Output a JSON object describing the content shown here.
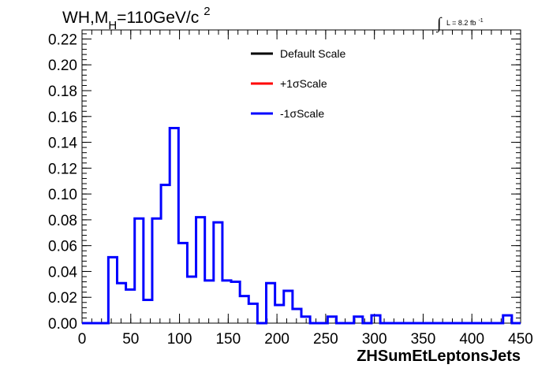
{
  "chart_data": {
    "type": "line",
    "title": {
      "main": "WH,M",
      "subscript": "H",
      "rest": "=110GeV/c",
      "superscript": "2"
    },
    "luminosity": {
      "symbol": "∫",
      "text": "L = 8.2 fb",
      "superscript": "-1"
    },
    "xlabel": "ZHSumEtLeptonsJets",
    "ylabel": "",
    "xlim": [
      0,
      450
    ],
    "ylim": [
      0,
      0.227
    ],
    "x_ticks": [
      "0",
      "50",
      "100",
      "150",
      "200",
      "250",
      "300",
      "350",
      "400",
      "450"
    ],
    "y_ticks": [
      "0.00",
      "0.02",
      "0.04",
      "0.06",
      "0.08",
      "0.10",
      "0.12",
      "0.14",
      "0.16",
      "0.18",
      "0.20",
      "0.22"
    ],
    "legend": {
      "placement": "top-center",
      "entries": [
        {
          "label": "Default Scale",
          "color": "#000000"
        },
        {
          "label": "+1σScale",
          "color": "#ff0000"
        },
        {
          "label": "-1σScale",
          "color": "#0000ff"
        }
      ]
    },
    "bin_width": 9,
    "x_start": 0,
    "series": [
      {
        "name": "-1σScale",
        "color": "#0000ff",
        "values": [
          0,
          0,
          0,
          0.051,
          0.031,
          0.026,
          0.081,
          0.018,
          0.081,
          0.107,
          0.151,
          0.062,
          0.036,
          0.082,
          0.033,
          0.078,
          0.033,
          0.032,
          0.021,
          0.015,
          0.0,
          0.031,
          0.014,
          0.025,
          0.011,
          0.005,
          0.0,
          0.0,
          0.005,
          0.0,
          0.0,
          0.005,
          0.0,
          0.006,
          0.0,
          0.0,
          0.0,
          0.0,
          0.0,
          0.0,
          0.0,
          0.0,
          0.0,
          0.0,
          0.0,
          0.0,
          0.0,
          0.0,
          0.006,
          0.0
        ]
      }
    ]
  }
}
